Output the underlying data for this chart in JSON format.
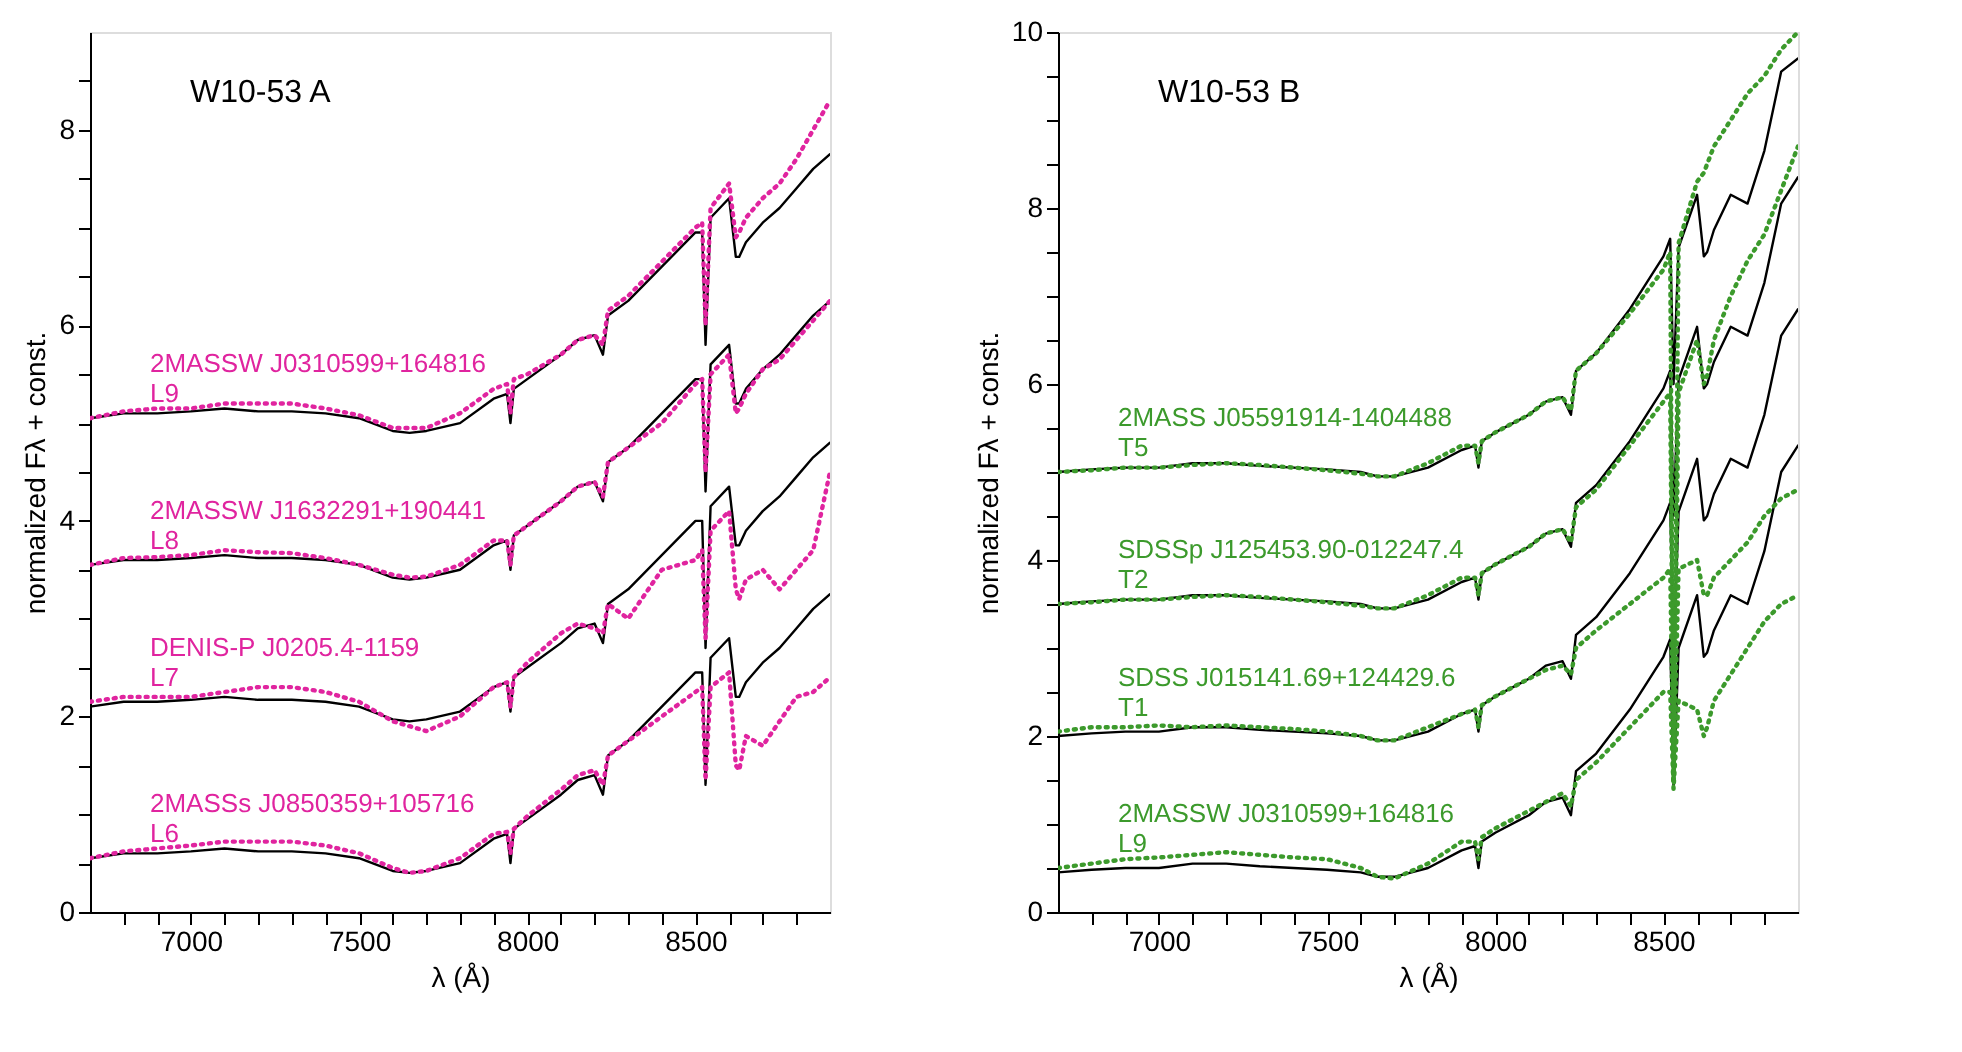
{
  "chart_data": [
    {
      "type": "line",
      "title": "W10-53 A",
      "xlabel": "λ (Å)",
      "ylabel": "normalized Fλ + const.",
      "x": [
        6700,
        6800,
        6900,
        7000,
        7100,
        7200,
        7300,
        7400,
        7500,
        7600,
        7650,
        7700,
        7800,
        7900,
        7940,
        7950,
        7960,
        8000,
        8100,
        8150,
        8200,
        8225,
        8240,
        8300,
        8400,
        8500,
        8520,
        8530,
        8545,
        8600,
        8620,
        8630,
        8650,
        8700,
        8750,
        8800,
        8850,
        8900
      ],
      "xlim": [
        6700,
        8900
      ],
      "xticks": [
        {
          "value": 6800,
          "label": null
        },
        {
          "value": 6900,
          "label": null
        },
        7000,
        {
          "value": 7100,
          "label": null
        },
        {
          "value": 7200,
          "label": null
        },
        {
          "value": 7300,
          "label": null
        },
        {
          "value": 7400,
          "label": null
        },
        7500,
        {
          "value": 7600,
          "label": null
        },
        {
          "value": 7700,
          "label": null
        },
        {
          "value": 7800,
          "label": null
        },
        {
          "value": 7900,
          "label": null
        },
        8000,
        {
          "value": 8100,
          "label": null
        },
        {
          "value": 8200,
          "label": null
        },
        {
          "value": 8300,
          "label": null
        },
        {
          "value": 8400,
          "label": null
        },
        8500,
        {
          "value": 8600,
          "label": null
        },
        {
          "value": 8700,
          "label": null
        },
        {
          "value": 8800,
          "label": null
        }
      ],
      "ylim": [
        0,
        9
      ],
      "yticks": [
        0,
        {
          "value": 0.5,
          "label": null
        },
        {
          "value": 1,
          "label": null
        },
        {
          "value": 1.5,
          "label": null
        },
        2,
        {
          "value": 2.5,
          "label": null
        },
        {
          "value": 3,
          "label": null
        },
        {
          "value": 3.5,
          "label": null
        },
        4,
        {
          "value": 4.5,
          "label": null
        },
        {
          "value": 5,
          "label": null
        },
        {
          "value": 5.5,
          "label": null
        },
        6,
        {
          "value": 6.5,
          "label": null
        },
        {
          "value": 7,
          "label": null
        },
        {
          "value": 7.5,
          "label": null
        },
        8,
        {
          "value": 8.5,
          "label": null
        }
      ],
      "series": [
        {
          "color": "#000000",
          "line_style": "solid",
          "values": [
            0.55,
            0.6,
            0.6,
            0.62,
            0.65,
            0.62,
            0.62,
            0.6,
            0.55,
            0.42,
            0.4,
            0.42,
            0.5,
            0.75,
            0.8,
            0.5,
            0.85,
            0.95,
            1.2,
            1.35,
            1.4,
            1.2,
            1.6,
            1.75,
            2.1,
            2.45,
            2.45,
            1.3,
            2.6,
            2.8,
            2.2,
            2.2,
            2.35,
            2.55,
            2.7,
            2.9,
            3.1,
            3.25
          ]
        },
        {
          "color": "#000000",
          "line_style": "solid",
          "values": [
            2.1,
            2.15,
            2.15,
            2.17,
            2.2,
            2.17,
            2.17,
            2.15,
            2.1,
            1.97,
            1.95,
            1.97,
            2.05,
            2.3,
            2.35,
            2.05,
            2.4,
            2.5,
            2.75,
            2.9,
            2.95,
            2.75,
            3.15,
            3.3,
            3.65,
            4.0,
            4.0,
            2.7,
            4.15,
            4.35,
            3.75,
            3.75,
            3.9,
            4.1,
            4.25,
            4.45,
            4.65,
            4.8
          ]
        },
        {
          "color": "#000000",
          "line_style": "solid",
          "values": [
            3.55,
            3.6,
            3.6,
            3.62,
            3.65,
            3.62,
            3.62,
            3.6,
            3.55,
            3.42,
            3.4,
            3.42,
            3.5,
            3.75,
            3.8,
            3.5,
            3.85,
            3.95,
            4.2,
            4.35,
            4.4,
            4.2,
            4.6,
            4.75,
            5.1,
            5.45,
            5.45,
            4.3,
            5.6,
            5.8,
            5.2,
            5.2,
            5.35,
            5.55,
            5.7,
            5.9,
            6.1,
            6.25
          ]
        },
        {
          "color": "#000000",
          "line_style": "solid",
          "values": [
            5.05,
            5.1,
            5.1,
            5.12,
            5.15,
            5.12,
            5.12,
            5.1,
            5.05,
            4.92,
            4.9,
            4.92,
            5.0,
            5.25,
            5.3,
            5.0,
            5.35,
            5.45,
            5.7,
            5.85,
            5.9,
            5.7,
            6.1,
            6.25,
            6.6,
            6.95,
            6.95,
            5.8,
            7.1,
            7.3,
            6.7,
            6.7,
            6.85,
            7.05,
            7.2,
            7.4,
            7.6,
            7.75
          ]
        },
        {
          "name": "2MASSs J0850359+105716\nL6",
          "color": "#e0249f",
          "line_style": "dotted",
          "values": [
            0.55,
            0.62,
            0.65,
            0.68,
            0.72,
            0.72,
            0.72,
            0.68,
            0.6,
            0.45,
            0.4,
            0.42,
            0.55,
            0.8,
            0.82,
            0.6,
            0.85,
            0.98,
            1.25,
            1.4,
            1.45,
            1.3,
            1.6,
            1.75,
            2.0,
            2.25,
            2.3,
            1.35,
            2.3,
            2.45,
            1.5,
            1.45,
            1.8,
            1.7,
            1.95,
            2.2,
            2.25,
            2.4
          ]
        },
        {
          "name": "DENIS-P J0205.4-1159\nL7",
          "color": "#e0249f",
          "line_style": "dotted",
          "values": [
            2.15,
            2.2,
            2.2,
            2.2,
            2.25,
            2.3,
            2.3,
            2.25,
            2.15,
            1.95,
            1.9,
            1.85,
            2.0,
            2.3,
            2.35,
            2.1,
            2.4,
            2.55,
            2.85,
            2.95,
            2.9,
            2.85,
            3.15,
            3.0,
            3.5,
            3.6,
            3.7,
            2.8,
            3.9,
            4.1,
            3.3,
            3.2,
            3.4,
            3.5,
            3.3,
            3.5,
            3.7,
            4.5
          ]
        },
        {
          "name": "2MASSW J1632291+190441\nL8",
          "color": "#e0249f",
          "line_style": "dotted",
          "values": [
            3.55,
            3.62,
            3.63,
            3.65,
            3.7,
            3.68,
            3.67,
            3.62,
            3.55,
            3.45,
            3.42,
            3.43,
            3.55,
            3.8,
            3.8,
            3.55,
            3.85,
            3.95,
            4.2,
            4.35,
            4.4,
            4.25,
            4.6,
            4.75,
            5.0,
            5.4,
            5.45,
            4.5,
            5.5,
            5.7,
            5.1,
            5.15,
            5.3,
            5.55,
            5.65,
            5.85,
            6.05,
            6.25
          ]
        },
        {
          "name": "2MASSW J0310599+164816\nL9",
          "color": "#e0249f",
          "line_style": "dotted",
          "values": [
            5.05,
            5.12,
            5.15,
            5.15,
            5.2,
            5.2,
            5.2,
            5.15,
            5.08,
            4.95,
            4.95,
            4.95,
            5.1,
            5.35,
            5.4,
            5.1,
            5.45,
            5.5,
            5.7,
            5.85,
            5.9,
            5.8,
            6.15,
            6.3,
            6.65,
            7.0,
            7.05,
            6.0,
            7.2,
            7.45,
            6.9,
            6.95,
            7.1,
            7.3,
            7.45,
            7.7,
            8.0,
            8.3
          ]
        }
      ]
    },
    {
      "type": "line",
      "title": "W10-53 B",
      "xlabel": "λ (Å)",
      "ylabel": "normalized Fλ + const.",
      "x": [
        6700,
        6800,
        6900,
        7000,
        7100,
        7200,
        7300,
        7400,
        7500,
        7600,
        7650,
        7700,
        7800,
        7900,
        7940,
        7950,
        7960,
        8000,
        8100,
        8150,
        8200,
        8225,
        8240,
        8300,
        8400,
        8500,
        8520,
        8530,
        8545,
        8600,
        8620,
        8630,
        8650,
        8700,
        8750,
        8800,
        8850,
        8900
      ],
      "xlim": [
        6700,
        8900
      ],
      "xticks": [
        {
          "value": 6800,
          "label": null
        },
        {
          "value": 6900,
          "label": null
        },
        7000,
        {
          "value": 7100,
          "label": null
        },
        {
          "value": 7200,
          "label": null
        },
        {
          "value": 7300,
          "label": null
        },
        {
          "value": 7400,
          "label": null
        },
        7500,
        {
          "value": 7600,
          "label": null
        },
        {
          "value": 7700,
          "label": null
        },
        {
          "value": 7800,
          "label": null
        },
        {
          "value": 7900,
          "label": null
        },
        8000,
        {
          "value": 8100,
          "label": null
        },
        {
          "value": 8200,
          "label": null
        },
        {
          "value": 8300,
          "label": null
        },
        {
          "value": 8400,
          "label": null
        },
        8500,
        {
          "value": 8600,
          "label": null
        },
        {
          "value": 8700,
          "label": null
        },
        {
          "value": 8800,
          "label": null
        }
      ],
      "ylim": [
        0,
        10
      ],
      "yticks": [
        0,
        {
          "value": 0.5,
          "label": null
        },
        {
          "value": 1,
          "label": null
        },
        {
          "value": 1.5,
          "label": null
        },
        2,
        {
          "value": 2.5,
          "label": null
        },
        {
          "value": 3,
          "label": null
        },
        {
          "value": 3.5,
          "label": null
        },
        4,
        {
          "value": 4.5,
          "label": null
        },
        {
          "value": 5,
          "label": null
        },
        {
          "value": 5.5,
          "label": null
        },
        6,
        {
          "value": 6.5,
          "label": null
        },
        {
          "value": 7,
          "label": null
        },
        {
          "value": 7.5,
          "label": null
        },
        8,
        {
          "value": 8.5,
          "label": null
        },
        {
          "value": 9,
          "label": null
        },
        {
          "value": 9.5,
          "label": null
        },
        10
      ],
      "series": [
        {
          "color": "#000000",
          "line_style": "solid",
          "values": [
            0.45,
            0.48,
            0.5,
            0.5,
            0.55,
            0.55,
            0.52,
            0.5,
            0.48,
            0.45,
            0.4,
            0.4,
            0.5,
            0.7,
            0.75,
            0.5,
            0.8,
            0.9,
            1.1,
            1.25,
            1.3,
            1.1,
            1.6,
            1.8,
            2.3,
            2.9,
            3.1,
            1.4,
            3.0,
            3.6,
            2.9,
            2.95,
            3.2,
            3.6,
            3.5,
            4.1,
            5.0,
            5.3
          ]
        },
        {
          "color": "#000000",
          "line_style": "solid",
          "values": [
            2.0,
            2.03,
            2.05,
            2.05,
            2.1,
            2.1,
            2.07,
            2.05,
            2.03,
            2.0,
            1.95,
            1.95,
            2.05,
            2.25,
            2.3,
            2.05,
            2.35,
            2.45,
            2.65,
            2.8,
            2.85,
            2.65,
            3.15,
            3.35,
            3.85,
            4.45,
            4.65,
            2.9,
            4.55,
            5.15,
            4.45,
            4.5,
            4.75,
            5.15,
            5.05,
            5.65,
            6.55,
            6.85
          ]
        },
        {
          "color": "#000000",
          "line_style": "solid",
          "values": [
            3.5,
            3.53,
            3.55,
            3.55,
            3.6,
            3.6,
            3.57,
            3.55,
            3.53,
            3.5,
            3.45,
            3.45,
            3.55,
            3.75,
            3.8,
            3.55,
            3.85,
            3.95,
            4.15,
            4.3,
            4.35,
            4.15,
            4.65,
            4.85,
            5.35,
            5.95,
            6.15,
            4.5,
            6.05,
            6.65,
            5.95,
            6.0,
            6.25,
            6.65,
            6.55,
            7.15,
            8.05,
            8.35
          ]
        },
        {
          "color": "#000000",
          "line_style": "solid",
          "values": [
            5.0,
            5.03,
            5.05,
            5.05,
            5.1,
            5.1,
            5.07,
            5.05,
            5.03,
            5.0,
            4.95,
            4.95,
            5.05,
            5.25,
            5.3,
            5.05,
            5.35,
            5.45,
            5.65,
            5.8,
            5.85,
            5.65,
            6.15,
            6.35,
            6.85,
            7.45,
            7.65,
            6.0,
            7.55,
            8.15,
            7.45,
            7.5,
            7.75,
            8.15,
            8.05,
            8.65,
            9.55,
            9.7
          ]
        },
        {
          "name": "2MASSW J0310599+164816\nL9",
          "color": "#3c9a2c",
          "line_style": "dotted",
          "values": [
            0.5,
            0.55,
            0.6,
            0.62,
            0.65,
            0.68,
            0.65,
            0.62,
            0.6,
            0.5,
            0.4,
            0.38,
            0.55,
            0.8,
            0.8,
            0.6,
            0.85,
            0.95,
            1.15,
            1.25,
            1.35,
            1.2,
            1.5,
            1.7,
            2.1,
            2.5,
            2.5,
            1.4,
            2.4,
            2.3,
            2.0,
            2.1,
            2.4,
            2.7,
            3.0,
            3.3,
            3.5,
            3.6
          ]
        },
        {
          "name": "SDSS J015141.69+124429.6\nT1",
          "color": "#3c9a2c",
          "line_style": "dotted",
          "values": [
            2.05,
            2.1,
            2.1,
            2.12,
            2.1,
            2.12,
            2.1,
            2.08,
            2.05,
            2.0,
            1.95,
            1.95,
            2.1,
            2.25,
            2.3,
            2.1,
            2.35,
            2.45,
            2.65,
            2.75,
            2.8,
            2.7,
            3.0,
            3.2,
            3.5,
            3.8,
            3.9,
            1.5,
            3.9,
            4.0,
            3.6,
            3.6,
            3.8,
            4.0,
            4.2,
            4.5,
            4.7,
            4.8
          ]
        },
        {
          "name": "SDSSp J125453.90-012247.4\nT2",
          "color": "#3c9a2c",
          "line_style": "dotted",
          "values": [
            3.5,
            3.52,
            3.55,
            3.55,
            3.58,
            3.6,
            3.58,
            3.55,
            3.52,
            3.48,
            3.45,
            3.45,
            3.6,
            3.8,
            3.8,
            3.6,
            3.85,
            3.95,
            4.15,
            4.3,
            4.35,
            4.2,
            4.6,
            4.8,
            5.3,
            5.8,
            5.9,
            1.5,
            5.9,
            6.5,
            6.0,
            6.1,
            6.5,
            7.0,
            7.4,
            7.7,
            8.2,
            8.7
          ]
        },
        {
          "name": "2MASS J05591914-1404488\nT5",
          "color": "#3c9a2c",
          "line_style": "dotted",
          "values": [
            5.0,
            5.02,
            5.05,
            5.05,
            5.08,
            5.1,
            5.08,
            5.05,
            5.02,
            4.98,
            4.95,
            4.95,
            5.1,
            5.3,
            5.3,
            5.1,
            5.35,
            5.45,
            5.65,
            5.8,
            5.85,
            5.7,
            6.15,
            6.35,
            6.8,
            7.3,
            7.5,
            1.5,
            7.6,
            8.3,
            8.4,
            8.5,
            8.7,
            9.0,
            9.3,
            9.5,
            9.8,
            10.0
          ]
        }
      ]
    }
  ]
}
